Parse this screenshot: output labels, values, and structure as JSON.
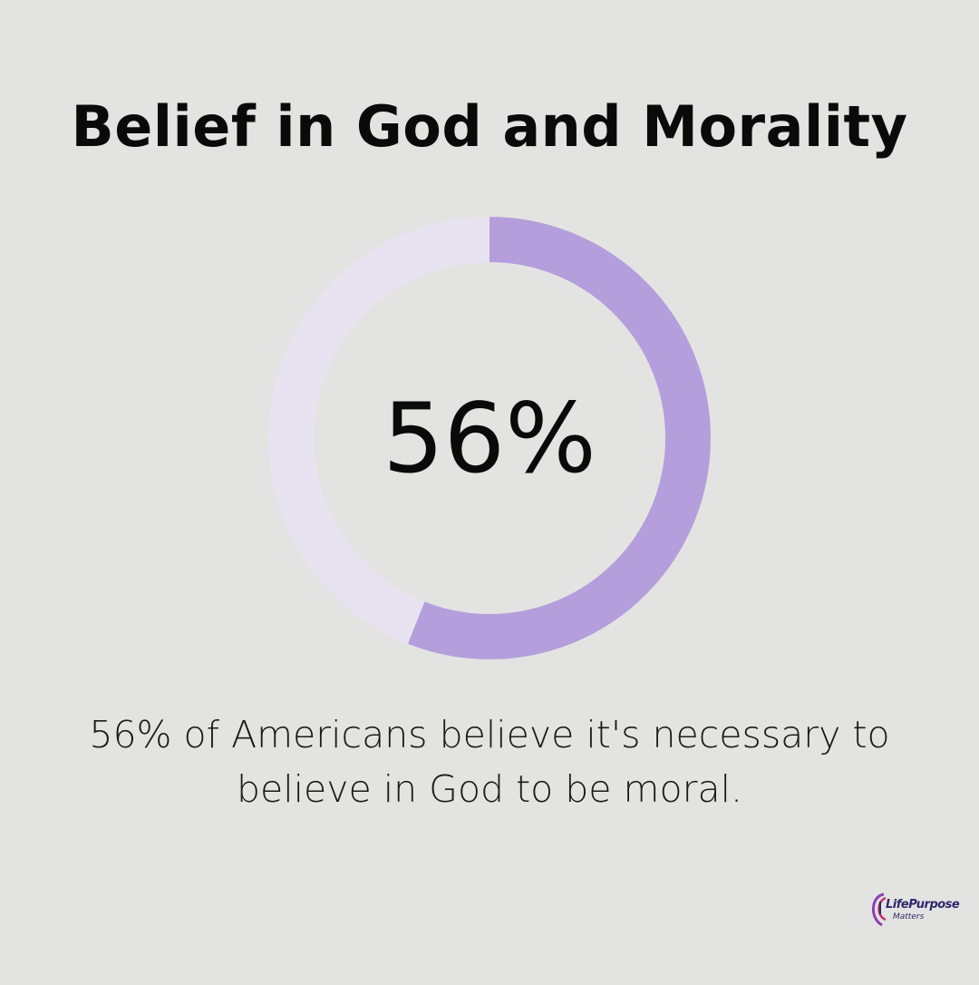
{
  "title": "Belief in God and Morality",
  "chart_data": {
    "type": "pie",
    "style": "donut",
    "values": [
      56,
      44
    ],
    "center_label": "56%",
    "caption_lines": [
      "56% of Americans believe it's necessary to",
      "believe in God to be moral."
    ]
  },
  "colors": {
    "background": "#e3e4e2",
    "filled": "#b49edb",
    "track": "#e7e3f1",
    "text": "#0a0a0a"
  },
  "logo": {
    "name": "LifePurpose",
    "sub": "Matters",
    "icon": "swirl-logo-icon"
  }
}
